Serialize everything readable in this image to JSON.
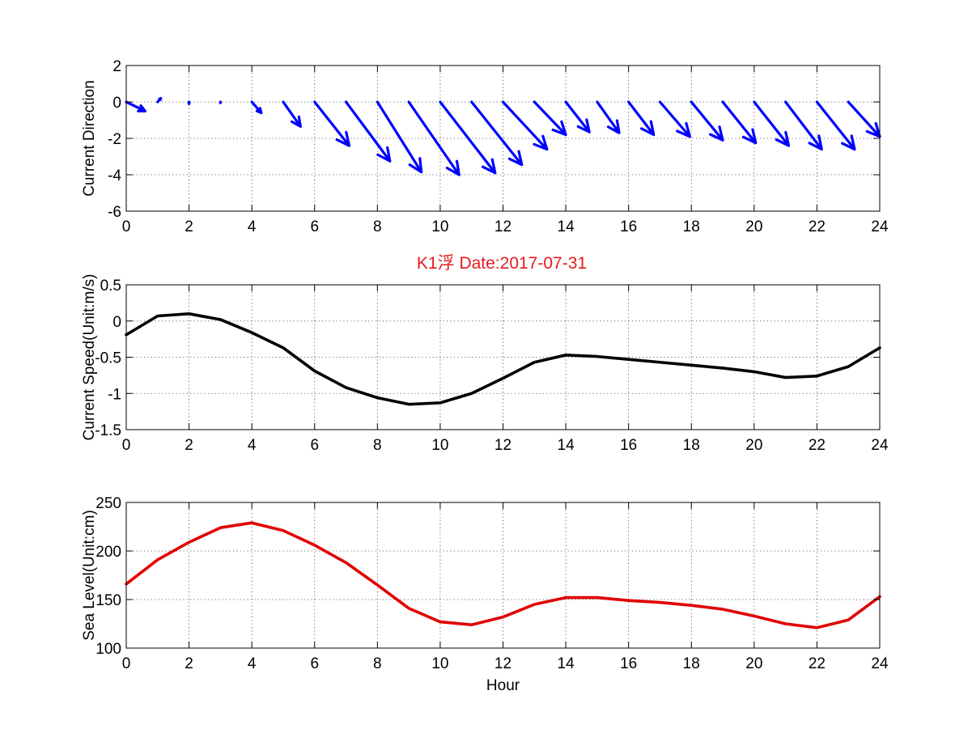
{
  "figure": {
    "title": "K1浮    Date:2017-07-31",
    "title_color": "#e41a1c"
  },
  "chart_data": [
    {
      "type": "quiver",
      "ylabel": "Current Direction",
      "xlim": [
        0,
        24
      ],
      "ylim": [
        -6,
        2
      ],
      "xticks": [
        0,
        2,
        4,
        6,
        8,
        10,
        12,
        14,
        16,
        18,
        20,
        22,
        24
      ],
      "yticks": [
        -6,
        -4,
        -2,
        0,
        2
      ],
      "grid": true,
      "color": "#0000ff",
      "vectors": [
        {
          "x": 0,
          "u": 0.6,
          "v": -0.5
        },
        {
          "x": 1,
          "u": 0.1,
          "v": 0.2
        },
        {
          "x": 2,
          "u": 0.0,
          "v": -0.1
        },
        {
          "x": 3,
          "u": 0.0,
          "v": -0.05
        },
        {
          "x": 4,
          "u": 0.3,
          "v": -0.6
        },
        {
          "x": 5,
          "u": 0.55,
          "v": -1.35
        },
        {
          "x": 6,
          "u": 1.1,
          "v": -2.4
        },
        {
          "x": 7,
          "u": 1.4,
          "v": -3.25
        },
        {
          "x": 8,
          "u": 1.4,
          "v": -3.85
        },
        {
          "x": 9,
          "u": 1.6,
          "v": -4.0
        },
        {
          "x": 10,
          "u": 1.75,
          "v": -3.9
        },
        {
          "x": 11,
          "u": 1.6,
          "v": -3.45
        },
        {
          "x": 12,
          "u": 1.4,
          "v": -2.6
        },
        {
          "x": 13,
          "u": 1.0,
          "v": -1.8
        },
        {
          "x": 14,
          "u": 0.75,
          "v": -1.65
        },
        {
          "x": 15,
          "u": 0.7,
          "v": -1.7
        },
        {
          "x": 16,
          "u": 0.8,
          "v": -1.8
        },
        {
          "x": 17,
          "u": 0.95,
          "v": -1.9
        },
        {
          "x": 18,
          "u": 1.0,
          "v": -2.1
        },
        {
          "x": 19,
          "u": 1.05,
          "v": -2.25
        },
        {
          "x": 20,
          "u": 1.1,
          "v": -2.4
        },
        {
          "x": 21,
          "u": 1.15,
          "v": -2.6
        },
        {
          "x": 22,
          "u": 1.2,
          "v": -2.6
        },
        {
          "x": 23,
          "u": 1.0,
          "v": -1.9
        }
      ]
    },
    {
      "type": "line",
      "ylabel": "Current Speed(Unit:m/s)",
      "xlim": [
        0,
        24
      ],
      "ylim": [
        -1.5,
        0.5
      ],
      "xticks": [
        0,
        2,
        4,
        6,
        8,
        10,
        12,
        14,
        16,
        18,
        20,
        22,
        24
      ],
      "yticks": [
        -1.5,
        -1,
        -0.5,
        0,
        0.5
      ],
      "grid": true,
      "color": "#000000",
      "series": [
        {
          "x": [
            0,
            1,
            2,
            3,
            4,
            5,
            6,
            7,
            8,
            9,
            10,
            11,
            12,
            13,
            14,
            15,
            16,
            17,
            18,
            19,
            20,
            21,
            22,
            23,
            24
          ],
          "values": [
            -0.19,
            0.07,
            0.1,
            0.02,
            -0.16,
            -0.37,
            -0.69,
            -0.92,
            -1.06,
            -1.15,
            -1.13,
            -1.0,
            -0.79,
            -0.57,
            -0.47,
            -0.49,
            -0.53,
            -0.57,
            -0.61,
            -0.65,
            -0.7,
            -0.78,
            -0.76,
            -0.63,
            -0.37
          ]
        }
      ]
    },
    {
      "type": "line",
      "xlabel": "Hour",
      "ylabel": "Sea Level(Unit:cm)",
      "xlim": [
        0,
        24
      ],
      "ylim": [
        100,
        250
      ],
      "xticks": [
        0,
        2,
        4,
        6,
        8,
        10,
        12,
        14,
        16,
        18,
        20,
        22,
        24
      ],
      "yticks": [
        100,
        150,
        200,
        250
      ],
      "grid": true,
      "color": "#e00000",
      "series": [
        {
          "x": [
            0,
            1,
            2,
            3,
            4,
            5,
            6,
            7,
            8,
            9,
            10,
            11,
            12,
            13,
            14,
            15,
            16,
            17,
            18,
            19,
            20,
            21,
            22,
            23,
            24
          ],
          "values": [
            166,
            191,
            209,
            224,
            229,
            221,
            206,
            188,
            165,
            141,
            127,
            124,
            132,
            145,
            152,
            152,
            149,
            147,
            144,
            140,
            133,
            125,
            121,
            129,
            153
          ]
        }
      ]
    }
  ]
}
